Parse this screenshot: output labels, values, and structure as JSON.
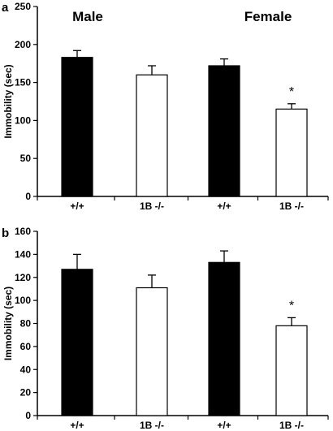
{
  "chart_data": [
    {
      "panel": "a",
      "type": "bar",
      "categories": [
        "+/+",
        "1B -/-",
        "+/+",
        "1B -/-"
      ],
      "values": [
        183,
        160,
        172,
        115
      ],
      "errors": [
        9,
        12,
        9,
        7
      ],
      "bar_colors": [
        "#000000",
        "#ffffff",
        "#000000",
        "#ffffff"
      ],
      "group_labels": [
        "Male",
        "Female"
      ],
      "annotations": [
        {
          "category_index": 3,
          "text": "*"
        }
      ],
      "ylabel": "Immobility (sec)",
      "xlabel": "",
      "ylim": [
        0,
        250
      ],
      "yticks": [
        0,
        50,
        100,
        150,
        200,
        250
      ],
      "grid": false
    },
    {
      "panel": "b",
      "type": "bar",
      "categories": [
        "+/+",
        "1B -/-",
        "+/+",
        "1B -/-"
      ],
      "values": [
        127,
        111,
        133,
        78
      ],
      "errors": [
        13,
        11,
        10,
        7
      ],
      "bar_colors": [
        "#000000",
        "#ffffff",
        "#000000",
        "#ffffff"
      ],
      "group_labels": [],
      "annotations": [
        {
          "category_index": 3,
          "text": "*"
        }
      ],
      "ylabel": "Immobility (sec)",
      "xlabel": "",
      "ylim": [
        0,
        160
      ],
      "yticks": [
        0,
        20,
        40,
        60,
        80,
        100,
        120,
        140,
        160
      ],
      "grid": false
    }
  ]
}
